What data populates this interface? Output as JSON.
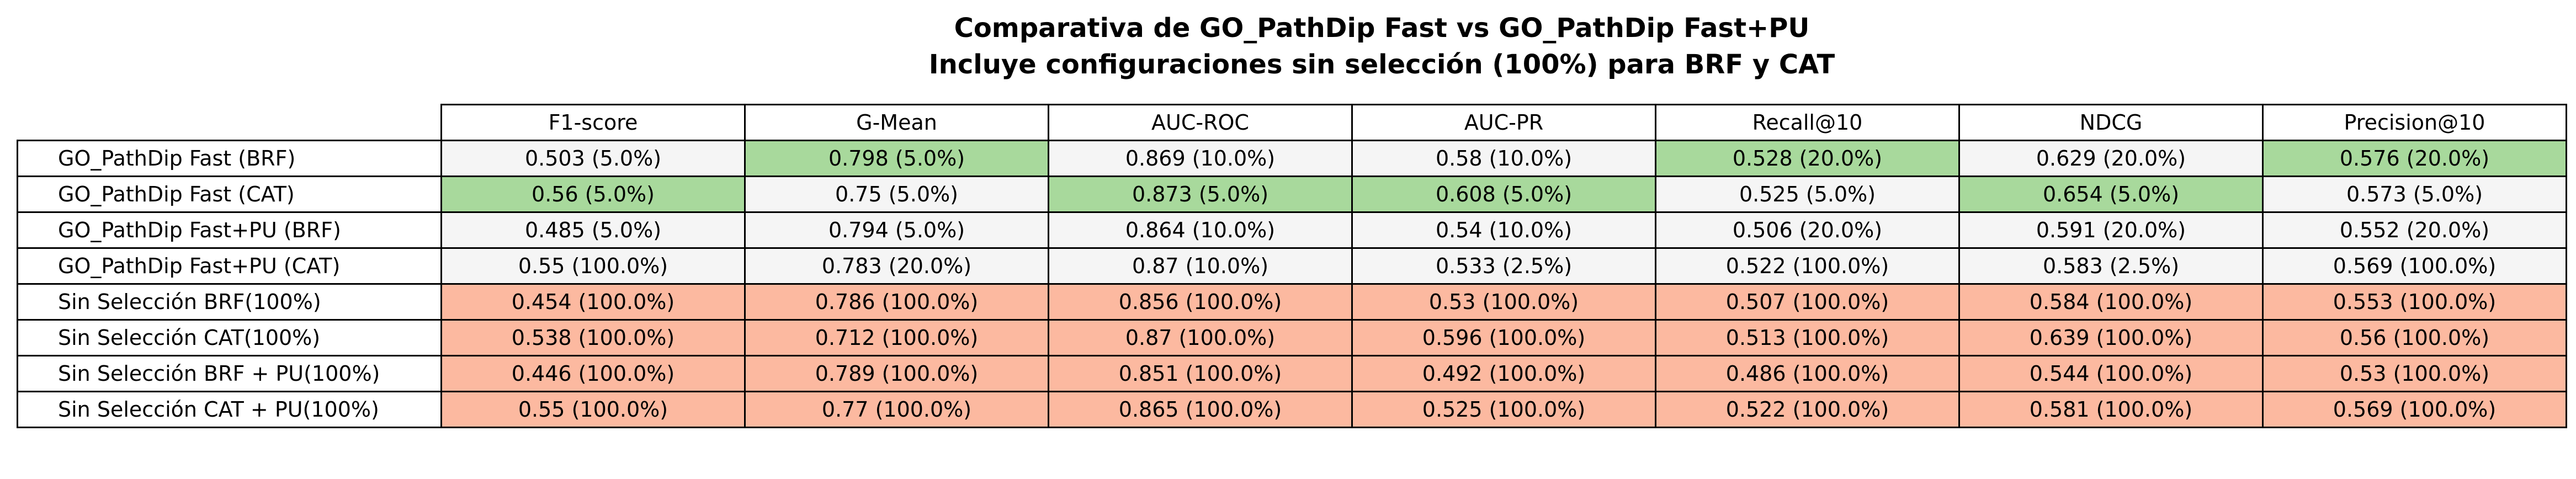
{
  "colors": {
    "best": "#a8d99c",
    "baseline": "#fcb9a0",
    "default": "#f5f5f5",
    "header": "#ffffff"
  },
  "chart_data": {
    "type": "table",
    "title_lines": [
      "Comparativa de GO_PathDip Fast vs GO_PathDip Fast+PU",
      "Incluye configuraciones sin selección (100%) para BRF y CAT"
    ],
    "columns": [
      "F1-score",
      "G-Mean",
      "AUC-ROC",
      "AUC-PR",
      "Recall@10",
      "NDCG",
      "Precision@10"
    ],
    "rows": [
      {
        "label": "GO_PathDip Fast (BRF)",
        "cells": [
          "0.503 (5.0%)",
          "0.798 (5.0%)",
          "0.869 (10.0%)",
          "0.58 (10.0%)",
          "0.528 (20.0%)",
          "0.629 (20.0%)",
          "0.576 (20.0%)"
        ],
        "highlight": [
          "default",
          "best",
          "default",
          "default",
          "best",
          "default",
          "best"
        ]
      },
      {
        "label": "GO_PathDip Fast (CAT)",
        "cells": [
          "0.56 (5.0%)",
          "0.75 (5.0%)",
          "0.873 (5.0%)",
          "0.608 (5.0%)",
          "0.525 (5.0%)",
          "0.654 (5.0%)",
          "0.573 (5.0%)"
        ],
        "highlight": [
          "best",
          "default",
          "best",
          "best",
          "default",
          "best",
          "default"
        ]
      },
      {
        "label": "GO_PathDip Fast+PU (BRF)",
        "cells": [
          "0.485 (5.0%)",
          "0.794 (5.0%)",
          "0.864 (10.0%)",
          "0.54 (10.0%)",
          "0.506 (20.0%)",
          "0.591 (20.0%)",
          "0.552 (20.0%)"
        ],
        "highlight": [
          "default",
          "default",
          "default",
          "default",
          "default",
          "default",
          "default"
        ]
      },
      {
        "label": "GO_PathDip Fast+PU (CAT)",
        "cells": [
          "0.55 (100.0%)",
          "0.783 (20.0%)",
          "0.87 (10.0%)",
          "0.533 (2.5%)",
          "0.522 (100.0%)",
          "0.583 (2.5%)",
          "0.569 (100.0%)"
        ],
        "highlight": [
          "default",
          "default",
          "default",
          "default",
          "default",
          "default",
          "default"
        ]
      },
      {
        "label": "Sin Selección BRF(100%)",
        "cells": [
          "0.454 (100.0%)",
          "0.786 (100.0%)",
          "0.856 (100.0%)",
          "0.53 (100.0%)",
          "0.507 (100.0%)",
          "0.584 (100.0%)",
          "0.553 (100.0%)"
        ],
        "highlight": [
          "baseline",
          "baseline",
          "baseline",
          "baseline",
          "baseline",
          "baseline",
          "baseline"
        ]
      },
      {
        "label": "Sin Selección CAT(100%)",
        "cells": [
          "0.538 (100.0%)",
          "0.712 (100.0%)",
          "0.87 (100.0%)",
          "0.596 (100.0%)",
          "0.513 (100.0%)",
          "0.639 (100.0%)",
          "0.56 (100.0%)"
        ],
        "highlight": [
          "baseline",
          "baseline",
          "baseline",
          "baseline",
          "baseline",
          "baseline",
          "baseline"
        ]
      },
      {
        "label": "Sin Selección BRF + PU(100%)",
        "cells": [
          "0.446 (100.0%)",
          "0.789 (100.0%)",
          "0.851 (100.0%)",
          "0.492 (100.0%)",
          "0.486 (100.0%)",
          "0.544 (100.0%)",
          "0.53 (100.0%)"
        ],
        "highlight": [
          "baseline",
          "baseline",
          "baseline",
          "baseline",
          "baseline",
          "baseline",
          "baseline"
        ]
      },
      {
        "label": "Sin Selección CAT + PU(100%)",
        "cells": [
          "0.55 (100.0%)",
          "0.77 (100.0%)",
          "0.865 (100.0%)",
          "0.525 (100.0%)",
          "0.522 (100.0%)",
          "0.581 (100.0%)",
          "0.569 (100.0%)"
        ],
        "highlight": [
          "baseline",
          "baseline",
          "baseline",
          "baseline",
          "baseline",
          "baseline",
          "baseline"
        ]
      }
    ]
  }
}
